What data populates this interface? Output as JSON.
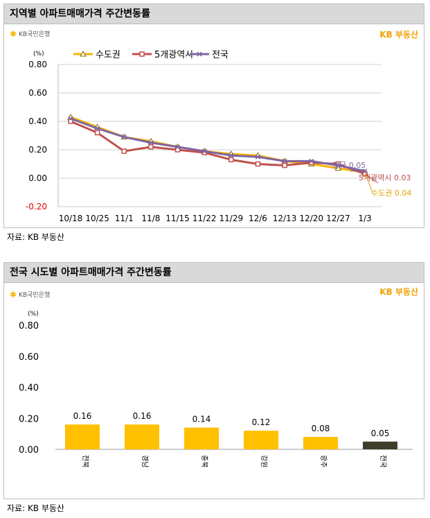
{
  "panel1": {
    "title": "지역별 아파트매매가격 주간변동률",
    "logo_text": "KB국민은행",
    "brand": "KB 부동산",
    "source": "자료: KB 부동산"
  },
  "panel2": {
    "title": "전국 시도별 아파트매매가격 주간변동률",
    "logo_text": "KB국민은행",
    "brand": "KB 부동산",
    "source": "자료: KB 부동산"
  },
  "colors": {
    "sudo": "#f5b400",
    "metro": "#c0504d",
    "national": "#8064a2",
    "bar": "#ffc000",
    "bar_national": "#3d3d29",
    "grid": "#d0d0d0"
  },
  "chart_data": [
    {
      "type": "line",
      "unit": "(%)",
      "categories": [
        "10/18",
        "10/25",
        "11/1",
        "11/8",
        "11/15",
        "11/22",
        "11/29",
        "12/6",
        "12/13",
        "12/20",
        "12/27",
        "1/3"
      ],
      "ylim": [
        -0.2,
        0.8
      ],
      "yticks": [
        "0.80",
        "0.60",
        "0.40",
        "0.20",
        "0.00",
        "-0.20"
      ],
      "series": [
        {
          "name": "수도권",
          "color": "#f5b400",
          "marker": "triangle",
          "values": [
            0.43,
            0.36,
            0.29,
            0.26,
            0.22,
            0.19,
            0.17,
            0.16,
            0.12,
            0.1,
            0.07,
            0.04
          ]
        },
        {
          "name": "5개광역시",
          "color": "#c0504d",
          "marker": "square",
          "values": [
            0.4,
            0.32,
            0.19,
            0.22,
            0.2,
            0.18,
            0.13,
            0.1,
            0.09,
            0.11,
            0.1,
            0.03
          ]
        },
        {
          "name": "전국",
          "color": "#8064a2",
          "marker": "cross",
          "values": [
            0.42,
            0.35,
            0.29,
            0.25,
            0.22,
            0.19,
            0.16,
            0.15,
            0.12,
            0.12,
            0.09,
            0.05
          ]
        }
      ],
      "annotations": [
        {
          "text": "전국 0.05",
          "color": "#8064a2"
        },
        {
          "text": "5개광역시 0.03",
          "color": "#c0504d"
        },
        {
          "text": "수도권 0.04",
          "color": "#e0a000"
        }
      ]
    },
    {
      "type": "bar",
      "unit": "(%)",
      "categories": [
        "전북",
        "경남",
        "충북",
        "강원",
        "광주",
        "전국"
      ],
      "values": [
        0.16,
        0.16,
        0.14,
        0.12,
        0.08,
        0.05
      ],
      "labels": [
        "0.16",
        "0.16",
        "0.14",
        "0.12",
        "0.08",
        "0.05"
      ],
      "ylim": [
        0.0,
        0.8
      ],
      "yticks": [
        "0.80",
        "0.60",
        "0.40",
        "0.20",
        "0.00"
      ]
    }
  ]
}
